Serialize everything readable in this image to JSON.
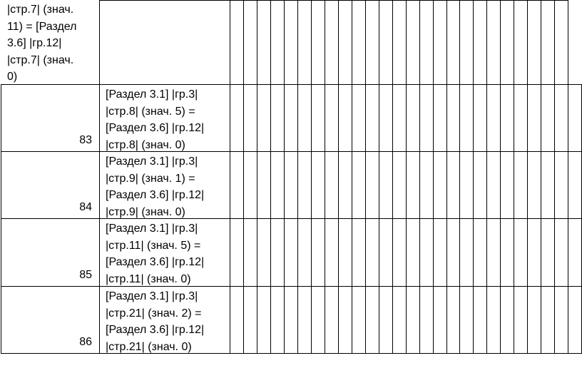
{
  "table": {
    "rows": [
      {
        "number": "",
        "col1_lines": [
          "|стр.7| (знач.",
          "11) = [Раздел",
          "3.6] |гр.12|",
          "|стр.7| (знач.",
          "0)"
        ],
        "col2_lines": []
      },
      {
        "number": "83",
        "col1_lines": [],
        "col2_lines": [
          "[Раздел 3.1] |гр.3|",
          "|стр.8| (знач. 5) =",
          "[Раздел 3.6] |гр.12|",
          "|стр.8| (знач. 0)"
        ]
      },
      {
        "number": "84",
        "col1_lines": [],
        "col2_lines": [
          "[Раздел 3.1] |гр.3|",
          "|стр.9| (знач. 1) =",
          "[Раздел 3.6] |гр.12|",
          "|стр.9| (знач. 0)"
        ]
      },
      {
        "number": "85",
        "col1_lines": [],
        "col2_lines": [
          "[Раздел 3.1] |гр.3|",
          "|стр.11| (знач. 5) =",
          "[Раздел 3.6] |гр.12|",
          "|стр.11| (знач. 0)"
        ]
      },
      {
        "number": "86",
        "col1_lines": [],
        "col2_lines": [
          "[Раздел 3.1] |гр.3|",
          "|стр.21| (знач. 2) =",
          "[Раздел 3.6] |гр.12|",
          "|стр.21| (знач. 0)"
        ]
      }
    ]
  }
}
